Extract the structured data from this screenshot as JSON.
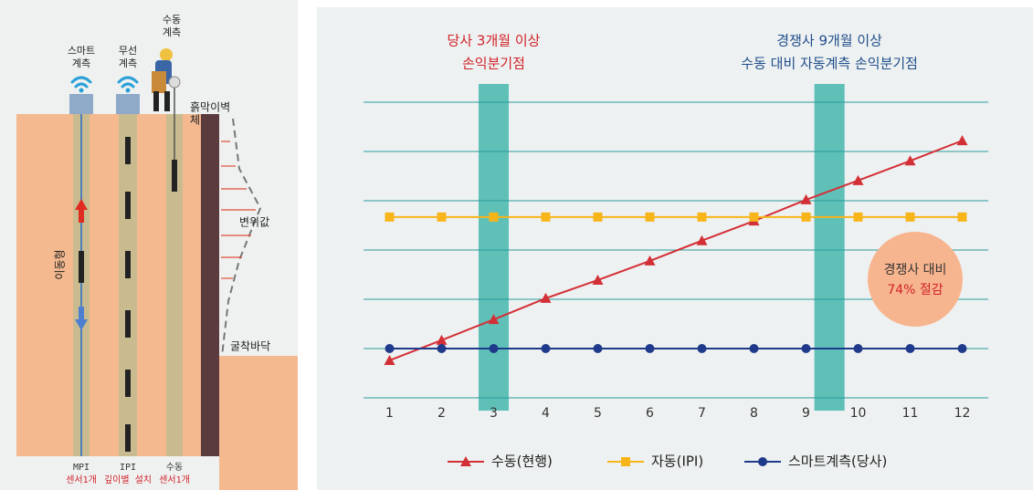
{
  "diagram": {
    "smart": [
      "스마트",
      "계측"
    ],
    "wireless": [
      "무선",
      "계측"
    ],
    "manual": [
      "수동",
      "계측"
    ],
    "wall": [
      "흙막이벽",
      "체"
    ],
    "displacement": "변위값",
    "bottom": "굴착바닥",
    "mobile": "이동형",
    "pipes": [
      {
        "name": "MPI",
        "note": "센서1개"
      },
      {
        "name": "IPI",
        "note": "깊이별 설치"
      },
      {
        "name": "수동",
        "note": "센서1개"
      }
    ]
  },
  "chart_data": {
    "type": "line",
    "x": [
      1,
      2,
      3,
      4,
      5,
      6,
      7,
      8,
      9,
      10,
      11,
      12
    ],
    "xlim": [
      0.5,
      12.5
    ],
    "xticks": [
      1,
      2,
      3,
      4,
      5,
      6,
      7,
      8,
      9,
      10,
      11,
      12
    ],
    "ylim": [
      0,
      6
    ],
    "yticks": [
      0,
      1,
      2,
      3,
      4,
      5,
      6
    ],
    "grid": true,
    "series": [
      {
        "name": "수동(현행)",
        "color": "#d32f36",
        "marker": "triangle",
        "values": [
          0.76,
          1.17,
          1.59,
          2.02,
          2.39,
          2.78,
          3.19,
          3.59,
          4.02,
          4.41,
          4.81,
          5.22
        ]
      },
      {
        "name": "자동(IPI)",
        "color": "#f7b519",
        "marker": "square",
        "values": [
          3.67,
          3.67,
          3.67,
          3.67,
          3.67,
          3.67,
          3.67,
          3.67,
          3.67,
          3.67,
          3.67,
          3.67
        ]
      },
      {
        "name": "스마트계측(당사)",
        "color": "#1f3a8a",
        "marker": "circle",
        "values": [
          1,
          1,
          1,
          1,
          1,
          1,
          1,
          1,
          1,
          1,
          1,
          1
        ]
      }
    ],
    "band_color": "#5fc0b8",
    "bands": [
      {
        "x": 3,
        "text": [
          "당사 3개월 이상",
          "손익분기점"
        ],
        "color": "#d2232a"
      },
      {
        "x": 9.45,
        "text": [
          "경쟁사 9개월 이상",
          "수동 대비 자동계측 손익분기점"
        ],
        "color": "#1f4e8c"
      }
    ],
    "callout": {
      "text": [
        "경쟁사 대비",
        "74% 절감"
      ],
      "colors": [
        "#333333",
        "#d2232a"
      ],
      "fill": "#f7b58f"
    },
    "legend": "bottom"
  }
}
